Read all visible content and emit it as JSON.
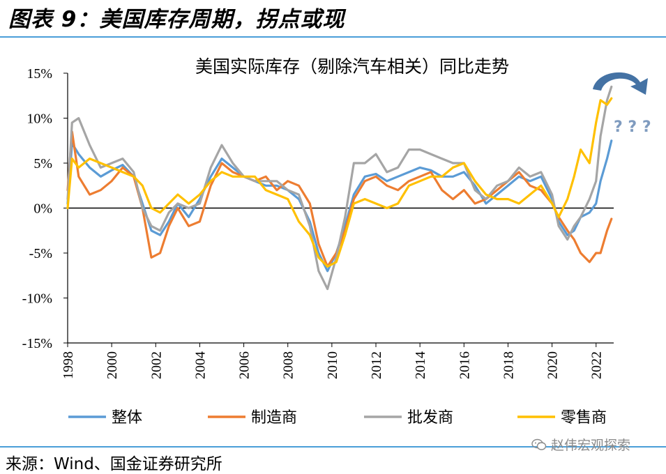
{
  "figure_title": "图表 9：美国库存周期，拐点或现",
  "source": "来源：Wind、国金证券研究所",
  "watermark": "赵伟宏观探索",
  "colors": {
    "整体": "#5b9bd5",
    "制造商": "#ed7d31",
    "批发商": "#a5a5a5",
    "零售商": "#ffc000",
    "arrow": "#4472a4",
    "rule": "#4a9ed8"
  },
  "chart_data": {
    "type": "line",
    "title": "美国实际库存（剔除汽车相关）同比走势",
    "xlabel": "",
    "ylabel": "",
    "ylim": [
      -15,
      15
    ],
    "yticks": [
      -15,
      -10,
      -5,
      0,
      5,
      10,
      15
    ],
    "ytick_labels": [
      "-15%",
      "-10%",
      "-5%",
      "0%",
      "5%",
      "10%",
      "15%"
    ],
    "xlim": [
      1998,
      2022.8
    ],
    "xticks": [
      1998,
      2000,
      2002,
      2004,
      2006,
      2008,
      2010,
      2012,
      2014,
      2016,
      2018,
      2020,
      2022
    ],
    "xtick_labels": [
      "1998",
      "2000",
      "2002",
      "2004",
      "2006",
      "2008",
      "2010",
      "2012",
      "2014",
      "2016",
      "2018",
      "2020",
      "2022"
    ],
    "annotation": "? ? ?",
    "series": [
      {
        "name": "整体",
        "x": [
          1998.0,
          1998.2,
          1998.5,
          1999.0,
          1999.5,
          2000.0,
          2000.5,
          2001.0,
          2001.4,
          2001.8,
          2002.2,
          2002.6,
          2003.0,
          2003.5,
          2004.0,
          2004.5,
          2005.0,
          2005.5,
          2006.0,
          2006.5,
          2007.0,
          2007.5,
          2008.0,
          2008.5,
          2009.0,
          2009.4,
          2009.8,
          2010.2,
          2010.6,
          2011.0,
          2011.5,
          2012.0,
          2012.5,
          2013.0,
          2013.5,
          2014.0,
          2014.5,
          2015.0,
          2015.5,
          2016.0,
          2016.5,
          2017.0,
          2017.5,
          2018.0,
          2018.5,
          2019.0,
          2019.5,
          2020.0,
          2020.3,
          2020.7,
          2021.0,
          2021.3,
          2021.7,
          2022.0,
          2022.2,
          2022.5,
          2022.7
        ],
        "values": [
          0.5,
          7.2,
          6.0,
          4.5,
          3.5,
          4.2,
          4.8,
          3.5,
          0.5,
          -2.5,
          -3.0,
          -1.5,
          0.5,
          -1.0,
          1.0,
          3.5,
          5.5,
          4.5,
          3.5,
          3.0,
          2.5,
          2.5,
          2.0,
          1.0,
          -1.5,
          -5.0,
          -7.0,
          -5.0,
          -2.0,
          1.5,
          3.5,
          3.8,
          3.0,
          3.5,
          4.0,
          4.5,
          4.2,
          3.5,
          3.5,
          4.0,
          2.5,
          0.5,
          1.5,
          2.5,
          3.5,
          3.0,
          3.5,
          1.0,
          -1.5,
          -3.0,
          -2.5,
          -1.0,
          -0.5,
          0.5,
          3.0,
          5.5,
          7.5
        ]
      },
      {
        "name": "制造商",
        "x": [
          1998.0,
          1998.2,
          1998.5,
          1999.0,
          1999.5,
          2000.0,
          2000.5,
          2001.0,
          2001.4,
          2001.8,
          2002.2,
          2002.6,
          2003.0,
          2003.5,
          2004.0,
          2004.5,
          2005.0,
          2005.5,
          2006.0,
          2006.5,
          2007.0,
          2007.5,
          2008.0,
          2008.5,
          2009.0,
          2009.4,
          2009.8,
          2010.2,
          2010.6,
          2011.0,
          2011.5,
          2012.0,
          2012.5,
          2013.0,
          2013.5,
          2014.0,
          2014.5,
          2015.0,
          2015.5,
          2016.0,
          2016.5,
          2017.0,
          2017.5,
          2018.0,
          2018.5,
          2019.0,
          2019.5,
          2020.0,
          2020.3,
          2020.7,
          2021.0,
          2021.3,
          2021.7,
          2022.0,
          2022.2,
          2022.5,
          2022.7
        ],
        "values": [
          2.0,
          8.5,
          3.5,
          1.5,
          2.0,
          3.0,
          4.5,
          3.5,
          0.0,
          -5.5,
          -5.0,
          -2.0,
          0.0,
          -2.0,
          -1.5,
          2.5,
          5.0,
          4.0,
          3.5,
          3.0,
          3.5,
          2.0,
          3.0,
          2.5,
          0.5,
          -4.0,
          -6.5,
          -5.0,
          -2.5,
          1.0,
          3.0,
          3.5,
          2.5,
          2.0,
          3.0,
          3.5,
          4.0,
          2.0,
          1.0,
          2.0,
          0.5,
          1.0,
          2.0,
          3.0,
          4.0,
          2.5,
          2.0,
          0.5,
          -1.0,
          -2.5,
          -3.5,
          -5.0,
          -6.0,
          -5.0,
          -5.0,
          -2.5,
          -1.2
        ]
      },
      {
        "name": "批发商",
        "x": [
          1998.0,
          1998.2,
          1998.5,
          1999.0,
          1999.5,
          2000.0,
          2000.5,
          2001.0,
          2001.4,
          2001.8,
          2002.2,
          2002.6,
          2003.0,
          2003.5,
          2004.0,
          2004.5,
          2005.0,
          2005.5,
          2006.0,
          2006.5,
          2007.0,
          2007.5,
          2008.0,
          2008.5,
          2009.0,
          2009.4,
          2009.8,
          2010.2,
          2010.6,
          2011.0,
          2011.5,
          2012.0,
          2012.5,
          2013.0,
          2013.5,
          2014.0,
          2014.5,
          2015.0,
          2015.5,
          2016.0,
          2016.5,
          2017.0,
          2017.5,
          2018.0,
          2018.5,
          2019.0,
          2019.5,
          2020.0,
          2020.3,
          2020.7,
          2021.0,
          2021.3,
          2021.7,
          2022.0,
          2022.2,
          2022.5,
          2022.7
        ],
        "values": [
          1.0,
          9.5,
          10.0,
          7.0,
          4.5,
          5.0,
          5.5,
          4.0,
          0.0,
          -2.0,
          -2.5,
          -0.5,
          0.5,
          0.0,
          0.5,
          4.5,
          7.0,
          5.0,
          3.5,
          3.0,
          3.0,
          3.0,
          2.0,
          1.5,
          -2.0,
          -7.0,
          -9.0,
          -5.5,
          -1.0,
          5.0,
          5.0,
          6.0,
          4.0,
          4.5,
          6.5,
          6.5,
          6.0,
          5.5,
          5.0,
          5.0,
          2.0,
          1.0,
          2.5,
          3.0,
          4.5,
          3.5,
          4.0,
          1.5,
          -2.0,
          -3.5,
          -2.0,
          -1.0,
          1.0,
          3.0,
          8.0,
          12.0,
          13.5
        ]
      },
      {
        "name": "零售商",
        "x": [
          1998.0,
          1998.2,
          1998.5,
          1999.0,
          1999.5,
          2000.0,
          2000.5,
          2001.0,
          2001.4,
          2001.8,
          2002.2,
          2002.6,
          2003.0,
          2003.5,
          2004.0,
          2004.5,
          2005.0,
          2005.5,
          2006.0,
          2006.5,
          2007.0,
          2007.5,
          2008.0,
          2008.5,
          2009.0,
          2009.4,
          2009.8,
          2010.2,
          2010.6,
          2011.0,
          2011.5,
          2012.0,
          2012.5,
          2013.0,
          2013.5,
          2014.0,
          2014.5,
          2015.0,
          2015.5,
          2016.0,
          2016.5,
          2017.0,
          2017.5,
          2018.0,
          2018.5,
          2019.0,
          2019.5,
          2020.0,
          2020.3,
          2020.7,
          2021.0,
          2021.3,
          2021.7,
          2022.0,
          2022.2,
          2022.5,
          2022.7
        ],
        "values": [
          0.0,
          5.5,
          4.5,
          5.5,
          5.0,
          4.5,
          4.0,
          3.5,
          2.5,
          0.0,
          -0.5,
          0.5,
          1.5,
          0.5,
          1.5,
          3.0,
          4.0,
          3.5,
          3.5,
          3.5,
          2.0,
          1.5,
          1.0,
          -1.5,
          -3.0,
          -5.5,
          -6.5,
          -6.0,
          -3.0,
          0.5,
          1.0,
          0.5,
          0.0,
          0.5,
          2.5,
          3.0,
          3.5,
          3.5,
          4.5,
          5.0,
          3.0,
          1.5,
          1.0,
          1.0,
          0.5,
          1.5,
          2.5,
          0.5,
          -1.0,
          1.0,
          3.5,
          6.5,
          5.0,
          9.5,
          12.0,
          11.5,
          12.2
        ]
      }
    ]
  }
}
